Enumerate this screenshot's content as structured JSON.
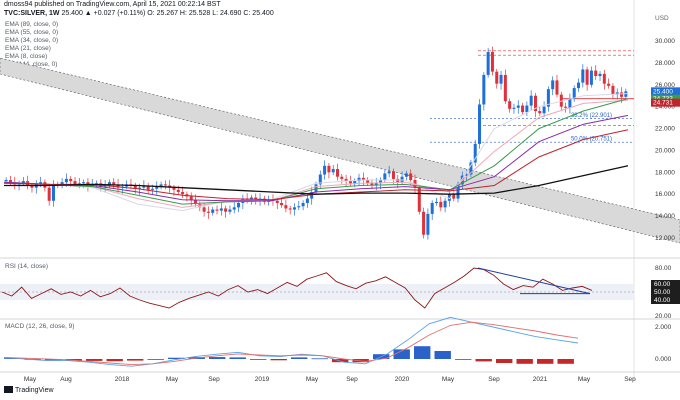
{
  "header": {
    "publisher": "dmoss94 published on TradingView.com, April 15, 2021 00:22:14 BST",
    "symbol": "TVC:SILVER, 1W",
    "quote": "25.400 ▲ +0.027 (+0.11%) O: 25.267 H: 25.528 L: 24.690 C: 25.400",
    "currency": "USD"
  },
  "indicators": {
    "ema89": "EMA (89, close, 0)",
    "ema55": "EMA (55, close, 0)",
    "ema34": "EMA (34, close, 0)",
    "ema21": "EMA (21, close)",
    "ema8": "EMA (8, close)",
    "ma144": "MA (144, close, 0)",
    "rsi": "RSI (14, close)",
    "macd": "MACD (12, 26, close, 9)"
  },
  "footer": {
    "logo": "TradingView"
  },
  "colors": {
    "up": "#1e6fd9",
    "down": "#e0303a",
    "channel": "#b0b0b0",
    "ema8": "#d8d8e8",
    "ema21": "#f0a8b8",
    "ema34": "#3b9b4f",
    "ema55": "#8a2ca6",
    "ema89": "#c0242f",
    "ma144": "#111111",
    "rsi": "#8b1a1a",
    "macd": "#5aa3e8",
    "signal": "#e07070",
    "hist_up": "#2a62c9",
    "hist_down": "#c62828"
  },
  "chart_data": [
    {
      "type": "candlestick",
      "title": "TVC:SILVER, 1W",
      "x_ticks": [
        "May",
        "Aug",
        "2018",
        "May",
        "Sep",
        "2019",
        "May",
        "Sep",
        "2020",
        "May",
        "Sep",
        "2021",
        "May",
        "Sep"
      ],
      "y_ticks": [
        12.0,
        14.0,
        16.0,
        18.0,
        20.0,
        22.0,
        24.0,
        26.0,
        28.0,
        30.0
      ],
      "ylim": [
        11.0,
        31.2
      ],
      "price_labels": [
        {
          "label": "25.400",
          "value": 25.4,
          "color": "#1e6fd9"
        },
        {
          "label": "24.733",
          "value": 24.733,
          "color": "#3b9b4f"
        },
        {
          "label": "24.731",
          "value": 24.731,
          "color": "#c0242f"
        }
      ],
      "fib_labels": [
        {
          "label": "38.2% (22.901)",
          "value": 22.901
        },
        {
          "label": "50.0% (20.751)",
          "value": 20.751
        }
      ],
      "horizontal_levels": [
        29.1,
        28.7,
        24.73,
        22.3
      ],
      "series_close": [
        17.3,
        17.1,
        16.9,
        17.0,
        17.2,
        16.8,
        16.6,
        16.9,
        17.1,
        16.6,
        15.4,
        16.8,
        16.9,
        17.1,
        17.4,
        17.2,
        16.9,
        17.0,
        17.1,
        16.8,
        16.9,
        17.0,
        16.7,
        16.8,
        17.1,
        16.9,
        16.6,
        16.7,
        16.9,
        16.8,
        16.5,
        16.6,
        16.8,
        16.4,
        16.5,
        16.7,
        16.9,
        16.8,
        16.6,
        16.4,
        16.2,
        16.0,
        15.8,
        15.5,
        15.1,
        14.8,
        14.4,
        14.3,
        14.6,
        14.5,
        14.7,
        14.4,
        14.6,
        14.8,
        15.2,
        15.6,
        15.4,
        15.7,
        15.5,
        15.6,
        15.3,
        15.5,
        15.4,
        15.2,
        15.0,
        14.7,
        14.6,
        14.8,
        14.9,
        15.2,
        15.6,
        16.2,
        16.9,
        17.8,
        18.6,
        18.0,
        18.3,
        17.6,
        17.4,
        17.2,
        17.0,
        17.2,
        17.5,
        17.3,
        17.0,
        16.8,
        17.0,
        17.3,
        17.9,
        18.1,
        17.4,
        17.1,
        17.6,
        17.9,
        17.3,
        16.6,
        14.4,
        12.3,
        14.2,
        15.2,
        15.3,
        14.8,
        15.4,
        16.0,
        15.6,
        16.9,
        17.7,
        17.8,
        18.9,
        20.6,
        24.2,
        26.9,
        29.0,
        27.2,
        26.1,
        26.9,
        24.5,
        23.8,
        23.9,
        24.1,
        23.5,
        24.1,
        25.0,
        23.6,
        23.4,
        24.0,
        25.6,
        26.4,
        25.1,
        24.0,
        23.9,
        24.7,
        25.7,
        26.2,
        27.4,
        26.0,
        27.3,
        26.8,
        27.0,
        26.1,
        25.9,
        25.1,
        25.3,
        24.9,
        25.4
      ],
      "series": [
        {
          "name": "EMA (8, close)",
          "values": [
            17.1,
            16.9,
            16.6,
            15.1,
            14.5,
            15.4,
            15.5,
            17.0,
            17.3,
            17.3,
            15.6,
            22.0,
            24.0,
            25.0,
            25.2
          ]
        },
        {
          "name": "EMA (21, close)",
          "values": [
            17.1,
            16.9,
            16.7,
            15.6,
            14.8,
            15.3,
            15.4,
            16.7,
            17.0,
            17.1,
            16.2,
            19.9,
            23.0,
            24.3,
            24.6
          ]
        },
        {
          "name": "EMA (34, close)",
          "values": [
            17.1,
            16.9,
            16.7,
            15.9,
            15.1,
            15.3,
            15.4,
            16.5,
            16.8,
            16.9,
            16.4,
            18.6,
            22.0,
            23.6,
            24.733
          ]
        },
        {
          "name": "EMA (55, close)",
          "values": [
            17.1,
            16.9,
            16.8,
            16.2,
            15.5,
            15.4,
            15.4,
            16.2,
            16.5,
            16.7,
            16.4,
            17.6,
            20.8,
            22.4,
            23.2
          ]
        },
        {
          "name": "EMA (89, close)",
          "values": [
            17.0,
            16.9,
            16.9,
            16.5,
            15.9,
            15.6,
            15.5,
            16.0,
            16.2,
            16.4,
            16.3,
            16.8,
            19.4,
            21.0,
            21.9
          ]
        },
        {
          "name": "MA (144, close, 0)",
          "values": [
            16.8,
            16.8,
            16.9,
            16.8,
            16.6,
            16.4,
            16.2,
            16.0,
            16.1,
            16.1,
            16.0,
            16.1,
            16.8,
            17.7,
            18.6
          ]
        }
      ]
    },
    {
      "type": "line",
      "title": "RSI (14, close)",
      "y_ticks": [
        20.0,
        40.0,
        50.0,
        60.0,
        80.0
      ],
      "ylim": [
        15,
        85
      ],
      "band": [
        40,
        60
      ],
      "values": [
        50,
        45,
        56,
        42,
        48,
        54,
        47,
        50,
        45,
        52,
        44,
        48,
        55,
        45,
        40,
        36,
        33,
        30,
        37,
        42,
        46,
        50,
        45,
        53,
        58,
        50,
        53,
        48,
        55,
        62,
        57,
        66,
        70,
        74,
        63,
        58,
        54,
        61,
        64,
        69,
        62,
        55,
        40,
        30,
        48,
        55,
        62,
        70,
        80,
        78,
        71,
        60,
        53,
        58,
        56,
        66,
        60,
        52,
        55,
        57,
        52
      ]
    },
    {
      "type": "line",
      "title": "MACD (12, 26, close, 9)",
      "y_ticks": [
        0.0,
        2.0
      ],
      "series": [
        {
          "name": "MACD",
          "values": [
            0.1,
            0.0,
            -0.1,
            -0.1,
            -0.2,
            -0.35,
            -0.45,
            -0.3,
            -0.05,
            0.15,
            0.3,
            0.42,
            0.2,
            0.15,
            0.3,
            0.2,
            -0.2,
            -0.3,
            0.3,
            1.2,
            2.2,
            2.6,
            2.3,
            2.0,
            1.7,
            1.4,
            1.2,
            1.0
          ]
        },
        {
          "name": "Signal",
          "values": [
            0.1,
            0.05,
            0.0,
            -0.05,
            -0.15,
            -0.25,
            -0.35,
            -0.3,
            -0.15,
            0.05,
            0.2,
            0.32,
            0.25,
            0.2,
            0.25,
            0.2,
            0.0,
            -0.15,
            0.05,
            0.7,
            1.5,
            2.1,
            2.3,
            2.15,
            1.95,
            1.75,
            1.5,
            1.3
          ]
        }
      ],
      "histogram": [
        0.05,
        -0.05,
        -0.08,
        -0.1,
        -0.12,
        -0.14,
        -0.1,
        -0.05,
        0.08,
        0.12,
        0.12,
        0.1,
        -0.05,
        -0.08,
        0.1,
        0.04,
        -0.2,
        -0.2,
        0.3,
        0.6,
        0.8,
        0.5,
        -0.05,
        -0.15,
        -0.25,
        -0.3,
        -0.3,
        -0.3
      ]
    }
  ]
}
